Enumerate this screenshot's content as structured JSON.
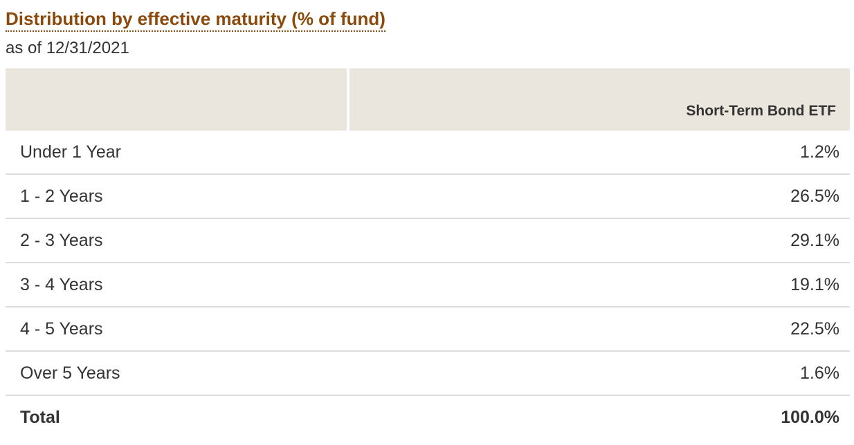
{
  "header": {
    "title": "Distribution by effective maturity (% of fund)",
    "subtitle": "as of 12/31/2021"
  },
  "table": {
    "column_header": "Short-Term Bond ETF",
    "rows": [
      [
        "Under 1 Year",
        "1.2%"
      ],
      [
        "1 - 2 Years",
        "26.5%"
      ],
      [
        "2 - 3 Years",
        "29.1%"
      ],
      [
        "3 - 4 Years",
        "19.1%"
      ],
      [
        "4 - 5 Years",
        "22.5%"
      ],
      [
        "Over 5 Years",
        "1.6%"
      ]
    ],
    "total": [
      "Total",
      "100.0%"
    ]
  }
}
